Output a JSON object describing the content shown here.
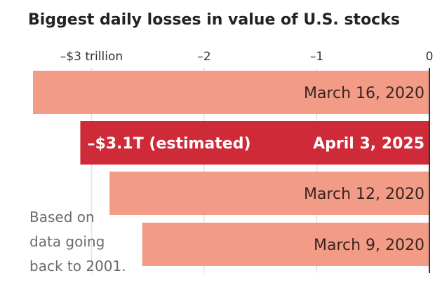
{
  "chart_data": {
    "type": "bar",
    "orientation": "horizontal",
    "title": "Biggest daily losses in value of U.S. stocks",
    "xlabel": "",
    "ylabel": "",
    "xlim": [
      -3.6,
      0
    ],
    "ticks": [
      {
        "value": -3,
        "label": "–$3 trillion"
      },
      {
        "value": -2,
        "label": "–2"
      },
      {
        "value": -1,
        "label": "–1"
      },
      {
        "value": 0,
        "label": "0"
      }
    ],
    "grid": true,
    "bars": [
      {
        "category": "March 16, 2020",
        "value": -3.52,
        "highlight": false
      },
      {
        "category": "April 3, 2025",
        "value": -3.1,
        "highlight": true,
        "annotation": "–$3.1T (estimated)"
      },
      {
        "category": "March 12, 2020",
        "value": -2.84,
        "highlight": false
      },
      {
        "category": "March 9, 2020",
        "value": -2.55,
        "highlight": false
      }
    ],
    "note": [
      "Based on",
      "data going",
      "back to 2001."
    ],
    "colors": {
      "bar": "#f29c87",
      "highlight": "#cf2a38",
      "axis": "#333333",
      "grid": "#e3e3e3"
    }
  }
}
